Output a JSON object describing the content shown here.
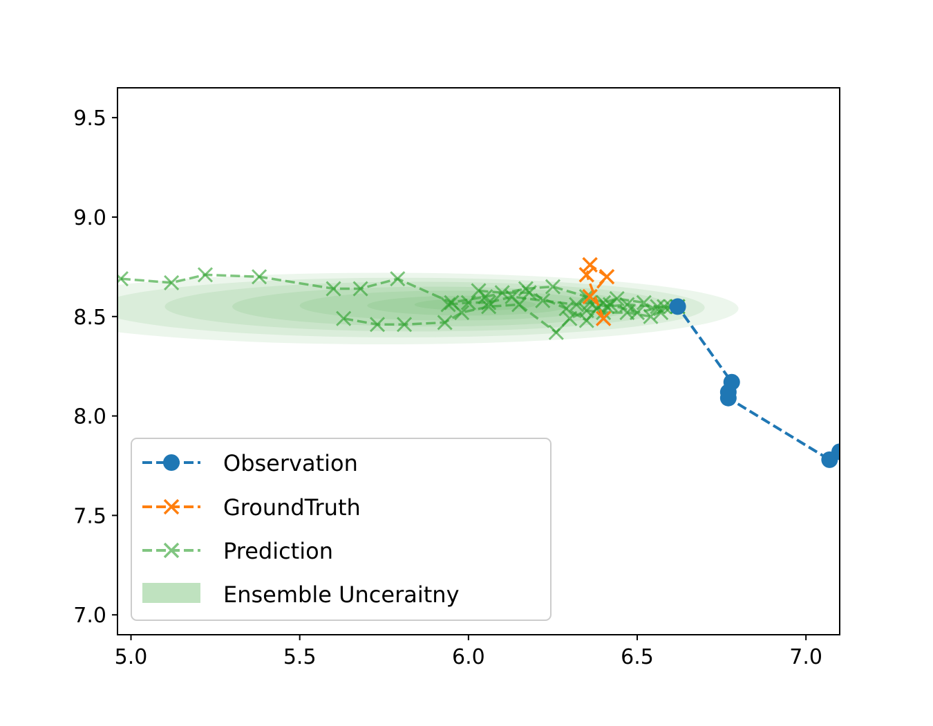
{
  "chart_data": {
    "type": "line",
    "title": "",
    "xlabel": "",
    "ylabel": "",
    "xlim": [
      4.96,
      7.1
    ],
    "ylim": [
      6.9,
      9.65
    ],
    "xticks": [
      5.0,
      5.5,
      6.0,
      6.5,
      7.0
    ],
    "xtick_labels": [
      "5.0",
      "5.5",
      "6.0",
      "6.5",
      "7.0"
    ],
    "yticks": [
      7.0,
      7.5,
      8.0,
      8.5,
      9.0,
      9.5
    ],
    "ytick_labels": [
      "7.0",
      "7.5",
      "8.0",
      "8.5",
      "9.0",
      "9.5"
    ],
    "legend_position": "lower-left",
    "colors": {
      "observation": "#1f77b4",
      "ground_truth": "#ff7f0e",
      "prediction": "#2ca02c",
      "uncertainty": "#2ca02c"
    },
    "series": [
      {
        "name": "Observation",
        "style": "dashed-circle",
        "x": [
          7.1,
          7.07,
          6.77,
          6.77,
          6.78,
          6.62
        ],
        "y": [
          7.82,
          7.78,
          8.09,
          8.12,
          8.17,
          8.55
        ]
      },
      {
        "name": "GroundTruth",
        "style": "dashed-x",
        "x": [
          6.4,
          6.35,
          6.36,
          6.41,
          6.36
        ],
        "y": [
          8.49,
          8.71,
          8.76,
          8.7,
          8.6
        ]
      },
      {
        "name": "Prediction",
        "style": "dashed-x",
        "tracks": [
          {
            "x": [
              4.97,
              5.12,
              5.22,
              5.38,
              5.6,
              5.68,
              5.79,
              5.95,
              6.05,
              6.17,
              6.25,
              6.35,
              6.4,
              6.44,
              6.52,
              6.57
            ],
            "y": [
              8.69,
              8.67,
              8.71,
              8.7,
              8.64,
              8.64,
              8.69,
              8.57,
              8.6,
              8.64,
              8.65,
              8.6,
              8.57,
              8.59,
              8.57,
              8.52
            ]
          },
          {
            "x": [
              5.63,
              5.73,
              5.81,
              5.93,
              5.98,
              6.06,
              6.15,
              6.26,
              6.3,
              6.35,
              6.4,
              6.47,
              6.54,
              6.6
            ],
            "y": [
              8.49,
              8.46,
              8.46,
              8.47,
              8.52,
              8.55,
              8.56,
              8.42,
              8.49,
              8.53,
              8.52,
              8.52,
              8.5,
              8.55
            ]
          },
          {
            "x": [
              6.03,
              6.1,
              6.18,
              6.29,
              6.35,
              6.38,
              6.42,
              6.5,
              6.58,
              6.62
            ],
            "y": [
              8.63,
              8.62,
              8.62,
              8.54,
              8.48,
              8.54,
              8.56,
              8.52,
              8.55,
              8.55
            ]
          },
          {
            "x": [
              5.94,
              6.0,
              6.06,
              6.13,
              6.22,
              6.32,
              6.36,
              6.41,
              6.47,
              6.56,
              6.62
            ],
            "y": [
              8.56,
              8.57,
              8.57,
              8.6,
              8.58,
              8.56,
              8.57,
              8.55,
              8.56,
              8.55,
              8.55
            ]
          }
        ]
      },
      {
        "name": "Ensemble Unceraitny",
        "style": "shaded-ellipses",
        "ellipses": [
          {
            "cx": 5.75,
            "cy": 8.54,
            "rx": 1.05,
            "ry": 0.18
          },
          {
            "cx": 5.8,
            "cy": 8.545,
            "rx": 0.9,
            "ry": 0.15
          },
          {
            "cx": 5.85,
            "cy": 8.55,
            "rx": 0.75,
            "ry": 0.125
          },
          {
            "cx": 5.9,
            "cy": 8.55,
            "rx": 0.6,
            "ry": 0.1
          },
          {
            "cx": 5.95,
            "cy": 8.555,
            "rx": 0.45,
            "ry": 0.075
          },
          {
            "cx": 6.0,
            "cy": 8.555,
            "rx": 0.3,
            "ry": 0.05
          },
          {
            "cx": 6.02,
            "cy": 8.56,
            "rx": 0.18,
            "ry": 0.03
          }
        ]
      }
    ],
    "legend": {
      "entries": [
        "Observation",
        "GroundTruth",
        "Prediction",
        "Ensemble Unceraitny"
      ]
    }
  }
}
